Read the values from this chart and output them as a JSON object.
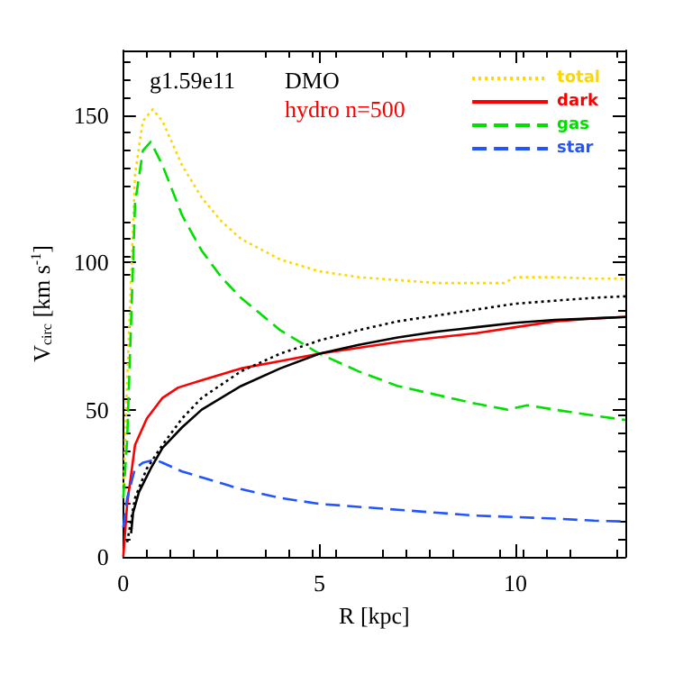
{
  "chart_data": {
    "type": "line",
    "xlabel": "R [kpc]",
    "ylabel": "V$_{circ}$ [km s$^{-1}$]",
    "xlim": [
      0,
      12.8
    ],
    "ylim": [
      0,
      172
    ],
    "xticks": [
      0,
      5,
      10
    ],
    "yticks": [
      0,
      50,
      100,
      150
    ],
    "grid": false,
    "legend": "top right",
    "marker": "none",
    "annotations": [
      "g1.59e11",
      "DMO",
      "hydro n=500"
    ],
    "series": [
      {
        "name": "total",
        "color": "#ffd700",
        "line_style": "dotted",
        "x": [
          0,
          0.1,
          0.3,
          0.5,
          0.75,
          1.0,
          1.5,
          2,
          2.5,
          3,
          4,
          5,
          6,
          7,
          8,
          9,
          9.7,
          10,
          11,
          12,
          12.8
        ],
        "values": [
          20,
          60,
          130,
          148,
          152,
          148,
          133,
          122,
          114,
          108,
          101,
          97,
          95,
          94,
          93,
          93,
          93,
          95,
          95,
          94.5,
          94.5
        ]
      },
      {
        "name": "dark",
        "color": "#ff0000",
        "line_style": "solid",
        "x": [
          0,
          0.1,
          0.3,
          0.6,
          1.0,
          1.4,
          2,
          3,
          4,
          5,
          6,
          7,
          8,
          9,
          10,
          11,
          12,
          12.8
        ],
        "values": [
          0,
          18,
          38,
          47,
          54,
          57.5,
          60,
          64,
          66.5,
          69,
          71,
          73,
          74.5,
          76,
          78,
          80,
          81,
          81.5
        ]
      },
      {
        "name": "gas",
        "color": "#00e000",
        "line_style": "dashed",
        "x": [
          0,
          0.1,
          0.3,
          0.5,
          0.7,
          1.0,
          1.5,
          2,
          2.5,
          3,
          4,
          5,
          6,
          7,
          8,
          9,
          9.8,
          10.3,
          11,
          12,
          12.8
        ],
        "values": [
          20,
          40,
          120,
          138,
          141,
          133,
          116,
          104,
          95,
          88,
          77,
          69,
          63,
          58,
          55,
          52,
          50,
          51.5,
          50,
          48,
          46.5
        ]
      },
      {
        "name": "star",
        "color": "#2255ff",
        "line_style": "dashed",
        "x": [
          0,
          0.1,
          0.3,
          0.5,
          0.8,
          1.0,
          1.5,
          2,
          3,
          4,
          5,
          6,
          7,
          8,
          9,
          10,
          11,
          12,
          12.8
        ],
        "values": [
          10,
          20,
          30,
          32,
          33,
          32,
          29,
          27,
          23,
          20,
          18,
          17,
          16,
          15,
          14,
          13.5,
          13,
          12.3,
          12
        ]
      },
      {
        "color": "#000000",
        "line_style": "solid",
        "x": [
          0.2,
          0.25,
          0.4,
          0.7,
          1.0,
          1.5,
          2,
          3,
          4,
          5,
          6,
          7,
          8,
          9,
          10,
          11,
          12,
          12.8
        ],
        "values": [
          8,
          15,
          22,
          30,
          37,
          44,
          50,
          58,
          64,
          69,
          72,
          74.5,
          76.5,
          78,
          79.5,
          80.5,
          81,
          81.5
        ]
      },
      {
        "color": "#000000",
        "line_style": "dotted",
        "x": [
          0.1,
          0.3,
          0.6,
          1.0,
          1.5,
          2,
          3,
          4,
          5,
          6,
          7,
          8,
          9,
          10,
          11,
          12,
          12.8
        ],
        "values": [
          5,
          20,
          30,
          38,
          47,
          54,
          63,
          69,
          73.5,
          77,
          80,
          82,
          84,
          86,
          87,
          88,
          88.5
        ]
      }
    ]
  }
}
